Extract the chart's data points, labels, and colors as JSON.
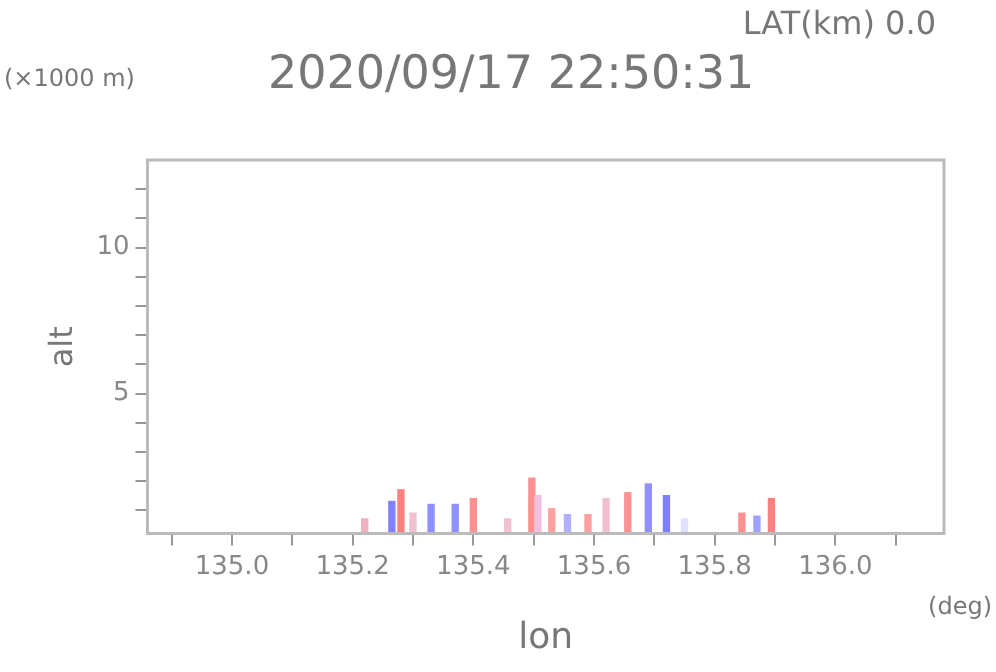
{
  "chart_data": {
    "type": "bar",
    "title": "2020/09/17 22:50:31",
    "xlabel": "lon",
    "ylabel": "alt",
    "annotations": [
      "LAT(km) 0.0",
      "(×1000 m)",
      "(deg)"
    ],
    "x": [
      135.22,
      135.265,
      135.28,
      135.3,
      135.33,
      135.37,
      135.4,
      135.43,
      135.457,
      135.497,
      135.507,
      135.53,
      135.556,
      135.59,
      135.62,
      135.656,
      135.69,
      135.72,
      135.75,
      135.8,
      135.845,
      135.87,
      135.894
    ],
    "values": [
      0.7,
      1.3,
      1.7,
      0.9,
      1.2,
      1.2,
      1.4,
      null,
      0.7,
      2.1,
      1.5,
      1.05,
      0.85,
      0.85,
      1.4,
      1.6,
      1.9,
      1.5,
      0.7,
      null,
      0.9,
      0.8,
      1.4
    ],
    "colors": [
      "#f0b0c0",
      "#8080ff",
      "#ff8080",
      "#f0c0d0",
      "#9090ff",
      "#9090ff",
      "#ff9090",
      "#ffffff",
      "#f0c0d0",
      "#ff9090",
      "#f0c0e0",
      "#ffa0a0",
      "#b0b0ff",
      "#ffa0a0",
      "#f0c0d0",
      "#ff9090",
      "#9090ff",
      "#8080ff",
      "#e0e0ff",
      "#ffffff",
      "#ff9090",
      "#a0a0ff",
      "#ff8080"
    ],
    "xlim": [
      134.86,
      136.18
    ],
    "xticks": [
      {
        "value": 134.9,
        "label": null
      },
      {
        "value": 135.0,
        "label": "135.0"
      },
      {
        "value": 135.1,
        "label": null
      },
      {
        "value": 135.2,
        "label": "135.2"
      },
      {
        "value": 135.3,
        "label": null
      },
      {
        "value": 135.4,
        "label": "135.4"
      },
      {
        "value": 135.5,
        "label": null
      },
      {
        "value": 135.6,
        "label": "135.6"
      },
      {
        "value": 135.7,
        "label": null
      },
      {
        "value": 135.8,
        "label": "135.8"
      },
      {
        "value": 135.9,
        "label": null
      },
      {
        "value": 136.0,
        "label": "136.0"
      },
      {
        "value": 136.1,
        "label": null
      }
    ],
    "ylim": [
      0.2,
      13
    ],
    "yticks": [
      {
        "value": 1,
        "label": null
      },
      {
        "value": 2,
        "label": null
      },
      {
        "value": 3,
        "label": null
      },
      {
        "value": 4,
        "label": null
      },
      5,
      {
        "value": 6,
        "label": null
      },
      {
        "value": 7,
        "label": null
      },
      {
        "value": 8,
        "label": null
      },
      {
        "value": 9,
        "label": null
      },
      10,
      {
        "value": 11,
        "label": null
      },
      {
        "value": 12,
        "label": null
      }
    ],
    "grid": false,
    "legend": false
  }
}
